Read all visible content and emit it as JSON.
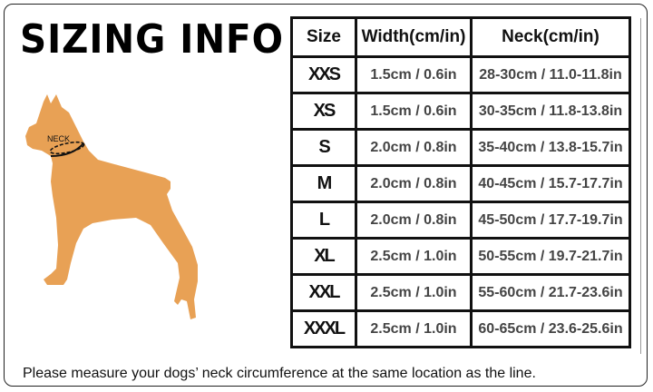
{
  "title": "SIZING INFO",
  "dog": {
    "neck_label": "NECK",
    "color": "#E8A155"
  },
  "table": {
    "headers": [
      "Size",
      "Width(cm/in)",
      "Neck(cm/in)"
    ],
    "rows": [
      [
        "XXS",
        "1.5cm / 0.6in",
        "28-30cm / 11.0-11.8in"
      ],
      [
        "XS",
        "1.5cm / 0.6in",
        "30-35cm / 11.8-13.8in"
      ],
      [
        "S",
        "2.0cm / 0.8in",
        "35-40cm / 13.8-15.7in"
      ],
      [
        "M",
        "2.0cm / 0.8in",
        "40-45cm / 15.7-17.7in"
      ],
      [
        "L",
        "2.0cm / 0.8in",
        "45-50cm / 17.7-19.7in"
      ],
      [
        "XL",
        "2.5cm / 1.0in",
        "50-55cm / 19.7-21.7in"
      ],
      [
        "XXL",
        "2.5cm / 1.0in",
        "55-60cm / 21.7-23.6in"
      ],
      [
        "XXXL",
        "2.5cm / 1.0in",
        "60-65cm / 23.6-25.6in"
      ]
    ]
  },
  "note": "Please measure your dogs’  neck circumference at the same location as the line."
}
